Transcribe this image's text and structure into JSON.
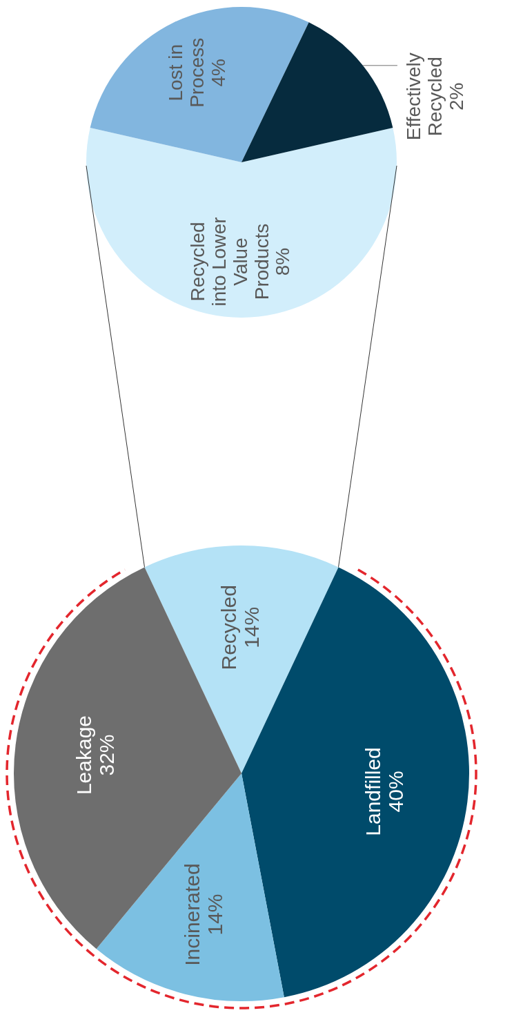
{
  "chart_data": [
    {
      "type": "pie",
      "categories": [
        "Recycled",
        "Landfilled",
        "Incinerated",
        "Leakage"
      ],
      "values": [
        14,
        40,
        14,
        32
      ],
      "value_labels": [
        "14%",
        "40%",
        "14%",
        "32%"
      ],
      "colors": [
        "#b4e2f6",
        "#004b6b",
        "#7cc0e2",
        "#6e6e6e"
      ]
    },
    {
      "type": "pie",
      "categories": [
        "Recycled into Lower Value Products",
        "Lost in Process",
        "Effectively Recycled"
      ],
      "values": [
        8,
        4,
        2
      ],
      "value_labels": [
        "8%",
        "4%",
        "2%"
      ],
      "colors": [
        "#d2eefb",
        "#82b6df",
        "#062b3e"
      ]
    }
  ]
}
